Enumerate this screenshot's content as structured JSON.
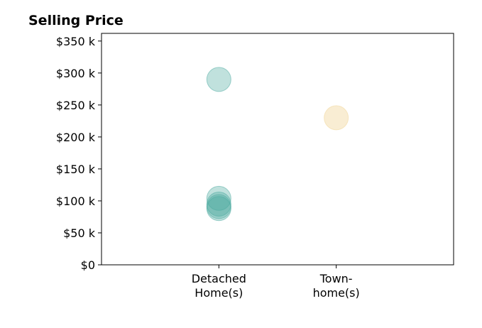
{
  "chart_data": {
    "type": "scatter",
    "title": "Selling Price",
    "xlabel": "",
    "ylabel": "",
    "categories": [
      [
        "Detached",
        "Home(s)"
      ],
      [
        "Town-",
        "home(s)"
      ]
    ],
    "yticks": [
      0,
      50000,
      100000,
      150000,
      200000,
      250000,
      300000,
      350000
    ],
    "ytick_labels": [
      "$0",
      "$50 k",
      "$100 k",
      "$150 k",
      "$200 k",
      "$250 k",
      "$300 k",
      "$350 k"
    ],
    "ylim": [
      0,
      362000
    ],
    "xlim": [
      -1,
      2
    ],
    "grid": false,
    "legend": "none",
    "series": [
      {
        "category": "Detached Home(s)",
        "color": "#4aa99f",
        "opacity": 0.35,
        "values": [
          290000,
          104000,
          95000,
          91000,
          88000
        ]
      },
      {
        "category": "Town-home(s)",
        "color": "#f3dca8",
        "opacity": 0.5,
        "values": [
          230000
        ]
      }
    ]
  }
}
